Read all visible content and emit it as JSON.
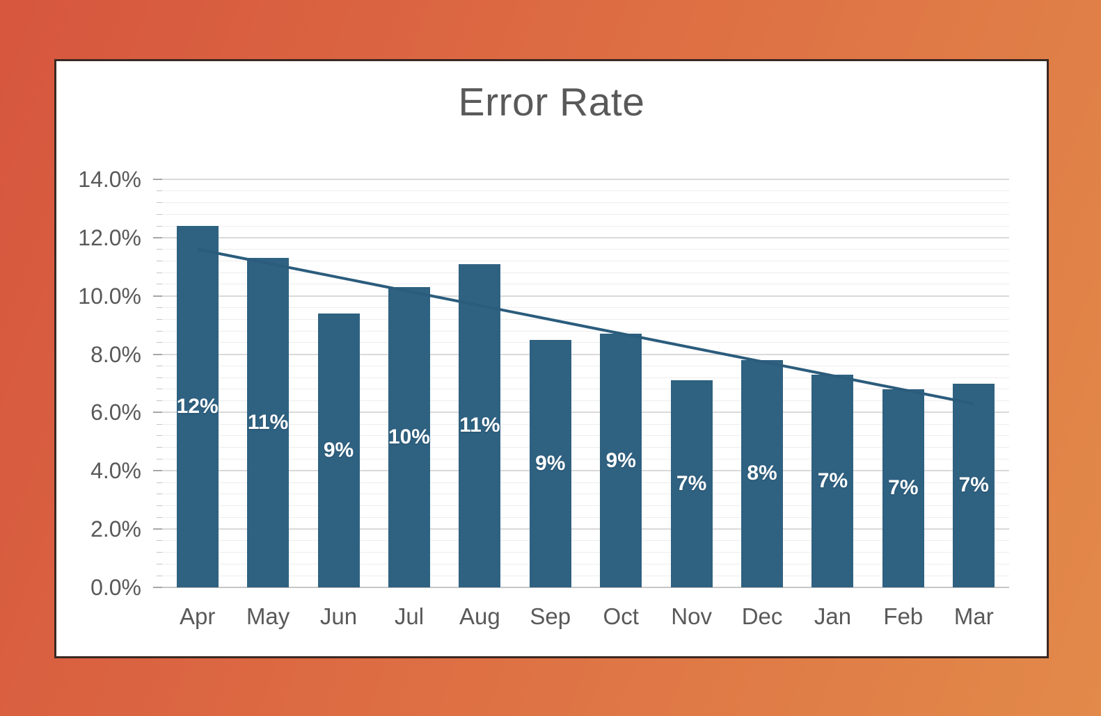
{
  "chart": {
    "title": "Error Rate"
  },
  "chart_data": {
    "type": "bar",
    "title": "Error Rate",
    "categories": [
      "Apr",
      "May",
      "Jun",
      "Jul",
      "Aug",
      "Sep",
      "Oct",
      "Nov",
      "Dec",
      "Jan",
      "Feb",
      "Mar"
    ],
    "values": [
      12.4,
      11.3,
      9.4,
      10.3,
      11.1,
      8.5,
      8.7,
      7.1,
      7.8,
      7.3,
      6.8,
      7.0
    ],
    "data_labels": [
      "12%",
      "11%",
      "9%",
      "10%",
      "11%",
      "9%",
      "9%",
      "7%",
      "8%",
      "7%",
      "7%",
      "7%"
    ],
    "xlabel": "",
    "ylabel": "",
    "ylim": [
      0,
      14
    ],
    "y_major_unit": 2,
    "y_minor_unit": 0.4,
    "y_tick_labels": [
      "0.0%",
      "2.0%",
      "4.0%",
      "6.0%",
      "8.0%",
      "10.0%",
      "12.0%",
      "14.0%"
    ],
    "trendline": {
      "type": "linear",
      "start_value": 11.6,
      "end_value": 6.3
    },
    "grid": "horizontal major and minor gridlines, no vertical gridlines",
    "legend": "none",
    "colors": {
      "bar_fill": "#2F6181",
      "trendline": "#2B5C7C",
      "title_text": "#595959",
      "axis_text": "#595959",
      "data_label_text": "#FFFFFF",
      "major_gridline": "#D9D9D9",
      "minor_gridline": "#EDEDED",
      "card_background": "#FFFFFF",
      "card_border": "#3A2822",
      "background_gradient_start": "#D6563E",
      "background_gradient_end": "#E28A4A"
    }
  }
}
